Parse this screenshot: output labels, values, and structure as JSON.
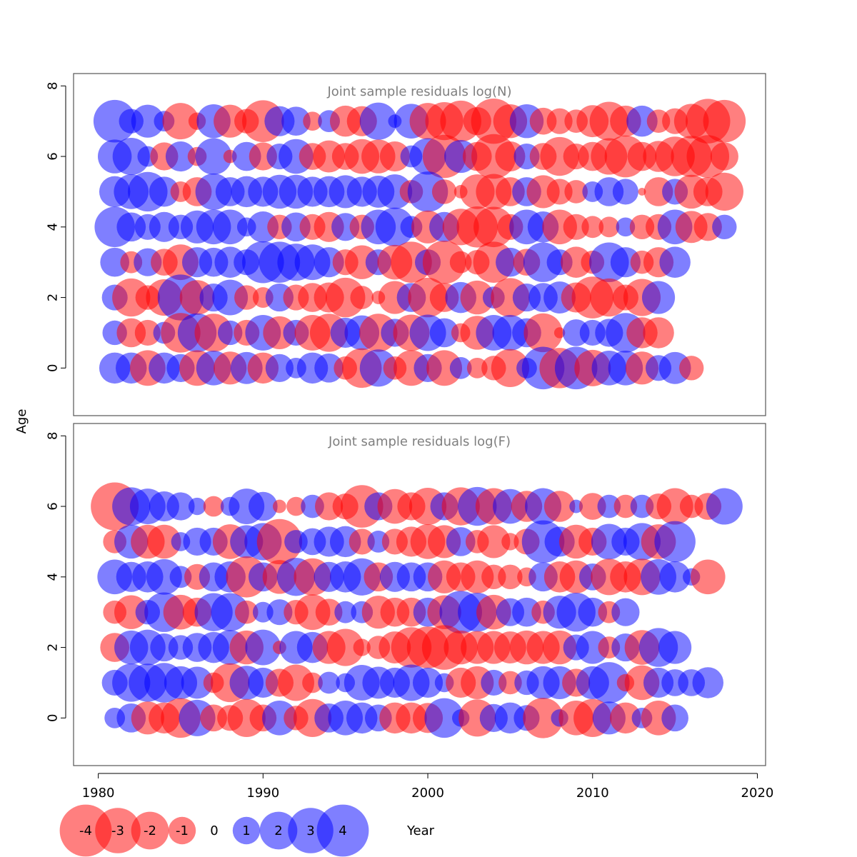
{
  "chart_data": {
    "type": "scatter",
    "description": "bubble residual plot",
    "xlabel": "Year",
    "ylabel": "Age",
    "xlim": [
      1978.5,
      2020.5
    ],
    "xticks": [
      1980,
      1990,
      2000,
      2010,
      2020
    ],
    "colors": {
      "positive": "#0000ff",
      "negative": "#ff0000",
      "frame": "#555555",
      "title": "#7f7f7f"
    },
    "start_year": 1981,
    "legend": {
      "values": [
        -4,
        -3,
        -2,
        -1,
        0,
        1,
        2,
        3,
        4
      ],
      "labels": [
        "-4",
        "-3",
        "-2",
        "-1",
        "0",
        "1",
        "2",
        "3",
        "4"
      ]
    },
    "panels": [
      {
        "title": "Joint sample residuals log(N)",
        "ylim": [
          -1.35,
          8.35
        ],
        "yticks": [
          0,
          2,
          4,
          6,
          8
        ],
        "ages": [
          7,
          6,
          5,
          4,
          3,
          2,
          1,
          0
        ],
        "residuals": [
          [
            3.0,
            1.0,
            1.8,
            0.7,
            -2.2,
            -0.5,
            1.9,
            -1.8,
            -1.0,
            -2.9,
            1.5,
            1.4,
            -0.6,
            0.8,
            -1.6,
            -1.5,
            2.3,
            0.3,
            2.0,
            -2.2,
            -2.4,
            -2.8,
            -1.3,
            -3.4,
            -1.9,
            1.9,
            -1.2,
            -1.1,
            -0.9,
            -1.7,
            -2.5,
            -1.6,
            1.6,
            -0.9,
            -1.1,
            -2.0,
            -3.3,
            -3.0
          ],
          [
            1.9,
            2.3,
            0.7,
            -1.3,
            1.5,
            -0.6,
            2.2,
            -0.3,
            1.4,
            -1.3,
            1.1,
            2.0,
            -1.2,
            -1.7,
            -1.2,
            -2.0,
            -1.9,
            -1.5,
            0.8,
            2.2,
            -3.1,
            1.8,
            -1.4,
            -3.3,
            -1.5,
            1.1,
            -1.2,
            -2.5,
            -1.1,
            -1.4,
            -2.2,
            -2.9,
            -1.4,
            -1.6,
            -2.6,
            -2.8,
            -3.0,
            -1.3
          ],
          [
            1.6,
            2.0,
            2.6,
            1.5,
            -0.7,
            -1.4,
            2.2,
            1.4,
            1.6,
            1.5,
            1.9,
            1.9,
            1.5,
            1.6,
            1.8,
            1.5,
            1.7,
            2.0,
            -0.9,
            2.7,
            -1.0,
            -0.3,
            -2.0,
            -2.1,
            -1.4,
            1.4,
            -1.8,
            -1.1,
            -0.9,
            0.7,
            1.4,
            1.1,
            -0.1,
            -1.4,
            1.1,
            -1.9,
            -1.4,
            -2.4
          ],
          [
            2.7,
            1.4,
            1.1,
            1.5,
            1.0,
            1.8,
            2.0,
            2.0,
            0.6,
            1.6,
            -1.0,
            1.4,
            -1.1,
            -1.5,
            1.3,
            -1.0,
            2.0,
            2.5,
            0.8,
            -1.8,
            1.5,
            -2.2,
            -2.8,
            -2.7,
            -1.1,
            2.0,
            1.6,
            -2.0,
            -1.1,
            -0.8,
            -0.7,
            0.6,
            -1.0,
            -1.1,
            2.0,
            -1.7,
            -1.3,
            1.0
          ],
          [
            1.4,
            -0.8,
            1.3,
            -1.2,
            -2.1,
            1.5,
            1.4,
            1.6,
            1.1,
            2.9,
            2.8,
            2.3,
            2.1,
            1.5,
            -1.1,
            -1.9,
            1.1,
            -2.0,
            -2.8,
            1.1,
            -3.1,
            -0.8,
            -1.0,
            -2.8,
            1.4,
            -1.2,
            2.6,
            1.1,
            -1.6,
            -0.9,
            2.6,
            1.5,
            -0.9,
            -1.5,
            1.6
          ],
          [
            1.1,
            -2.4,
            -1.0,
            -2.2,
            3.5,
            -2.0,
            1.3,
            2.1,
            -1.0,
            -0.7,
            1.3,
            -1.1,
            -1.4,
            -1.5,
            -2.6,
            -0.9,
            -0.3,
            -1.8,
            1.4,
            -2.6,
            -1.4,
            1.6,
            -1.9,
            0.8,
            -2.5,
            1.3,
            1.4,
            1.7,
            -1.5,
            -2.9,
            -2.4,
            -1.1,
            -2.3,
            1.8
          ],
          [
            1.0,
            -1.4,
            -1.1,
            0.8,
            -2.6,
            2.5,
            -2.4,
            1.0,
            -1.1,
            2.1,
            -1.8,
            1.1,
            -2.1,
            -2.4,
            1.5,
            2.0,
            -2.4,
            1.3,
            -2.2,
            2.2,
            1.4,
            -0.6,
            -1.9,
            2.1,
            2.1,
            1.4,
            -2.5,
            -0.2,
            1.2,
            1.1,
            1.3,
            2.6,
            -1.6,
            -1.6
          ],
          [
            1.6,
            1.6,
            -2.1,
            1.6,
            1.3,
            -2.1,
            2.0,
            -1.8,
            1.7,
            -1.6,
            1.3,
            0.7,
            1.6,
            1.4,
            -0.9,
            -2.6,
            2.3,
            -0.9,
            -2.1,
            1.3,
            -2.1,
            0.8,
            -0.7,
            -1.0,
            -2.4,
            0.7,
            3.0,
            -2.7,
            3.0,
            -2.2,
            2.0,
            2.0,
            -1.8,
            1.1,
            1.7,
            -1.0
          ]
        ]
      },
      {
        "title": "Joint sample residuals log(F)",
        "ylim": [
          -1.35,
          8.35
        ],
        "yticks": [
          0,
          2,
          4,
          6,
          8
        ],
        "ages": [
          6,
          5,
          4,
          3,
          2,
          1,
          0
        ],
        "residuals": [
          [
            -3.8,
            2.4,
            2.1,
            1.5,
            1.3,
            0.5,
            -0.7,
            0.6,
            2.1,
            1.4,
            -0.3,
            -0.6,
            0.9,
            -1.3,
            -1.1,
            -3.0,
            1.3,
            -2.0,
            -1.3,
            -2.3,
            1.3,
            -2.4,
            2.5,
            -2.2,
            2.0,
            -1.6,
            2.2,
            -1.6,
            0.3,
            -1.2,
            0.9,
            -0.9,
            0.9,
            -1.1,
            -2.2,
            -0.9,
            -1.2,
            2.2
          ],
          [
            -0.9,
            1.9,
            -1.9,
            -1.9,
            0.6,
            1.3,
            1.3,
            -2.0,
            1.8,
            2.3,
            -3.4,
            0.9,
            1.2,
            1.5,
            1.6,
            -1.1,
            0.8,
            -1.1,
            -1.5,
            -2.0,
            -1.8,
            1.4,
            -0.9,
            -1.8,
            -0.5,
            -1.1,
            3.0,
            1.5,
            -1.9,
            -1.3,
            2.1,
            1.3,
            2.3,
            -2.0,
            2.8
          ],
          [
            2.0,
            1.5,
            1.6,
            2.1,
            0.8,
            -1.1,
            1.4,
            1.6,
            -2.8,
            1.4,
            -1.9,
            2.4,
            -2.3,
            1.5,
            1.6,
            2.3,
            -1.4,
            1.5,
            1.4,
            1.4,
            -1.8,
            -1.4,
            -1.8,
            -1.0,
            -1.0,
            -0.6,
            1.4,
            -1.6,
            -1.8,
            1.2,
            -2.2,
            -1.6,
            -2.2,
            2.1,
            1.6,
            0.5,
            -2.0
          ],
          [
            -0.9,
            -1.9,
            1.0,
            2.6,
            -2.0,
            -1.4,
            2.4,
            2.4,
            -0.9,
            0.7,
            1.1,
            -1.0,
            -2.1,
            -1.2,
            0.8,
            0.8,
            -1.8,
            -1.4,
            -1.4,
            1.4,
            -1.9,
            3.0,
            2.5,
            -2.0,
            1.3,
            1.4,
            -0.9,
            1.8,
            2.5,
            1.4,
            -0.8,
            1.3
          ],
          [
            -1.4,
            1.9,
            2.1,
            1.3,
            1.0,
            1.4,
            1.6,
            2.0,
            -1.9,
            2.1,
            -0.3,
            1.8,
            1.6,
            -1.8,
            -2.3,
            -0.5,
            -0.9,
            -1.7,
            -2.7,
            -2.9,
            -3.3,
            -1.9,
            -1.8,
            -1.8,
            -1.7,
            -1.9,
            -1.8,
            -1.9,
            1.1,
            1.8,
            -0.8,
            1.3,
            -2.0,
            2.5,
            1.8
          ],
          [
            1.1,
            2.4,
            2.4,
            2.6,
            1.8,
            1.7,
            -0.7,
            -2.5,
            1.9,
            1.5,
            -1.3,
            -2.2,
            -0.7,
            0.8,
            0.6,
            2.1,
            1.7,
            1.5,
            2.2,
            1.5,
            0.6,
            -1.5,
            -1.8,
            1.1,
            -0.9,
            1.0,
            1.8,
            1.8,
            -1.3,
            1.8,
            2.8,
            -0.5,
            -2.0,
            1.5,
            1.2,
            1.2,
            1.6
          ],
          [
            0.7,
            1.4,
            -1.8,
            -1.6,
            -2.6,
            2.2,
            -1.2,
            -1.1,
            -2.4,
            -1.2,
            2.0,
            -1.0,
            -2.4,
            1.4,
            2.0,
            1.6,
            1.2,
            -1.6,
            -1.6,
            -1.5,
            2.6,
            0.5,
            -2.3,
            1.3,
            1.6,
            1.1,
            -2.7,
            0.5,
            -2.0,
            -2.4,
            1.8,
            -1.6,
            0.7,
            -2.0,
            1.2
          ]
        ]
      }
    ]
  }
}
